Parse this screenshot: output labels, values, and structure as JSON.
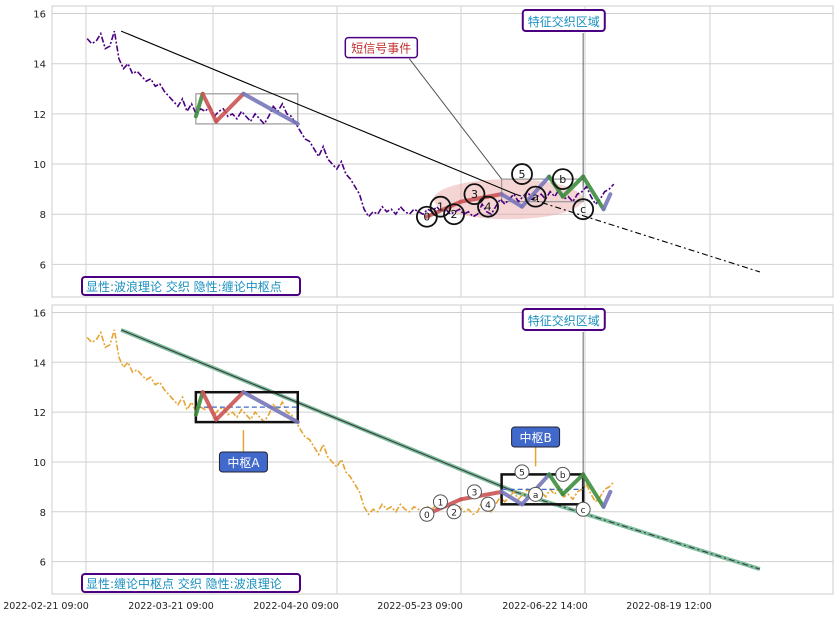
{
  "chart_data": [
    {
      "type": "line",
      "title": "",
      "ylim": [
        4.7,
        16.3
      ],
      "yticks": [
        6,
        8,
        10,
        12,
        14,
        16
      ],
      "grid": true,
      "x_ticks": [
        "2022-02-21 09:00",
        "2022-03-21 09:00",
        "2022-04-20 09:00",
        "2022-05-23 09:00",
        "2022-06-22 14:00",
        "2022-08-19 12:00"
      ],
      "legend_text": "显性:波浪理论 交织 隐性:缠论中枢点",
      "colors": {
        "price": "#4b0082",
        "trend": "#000000",
        "up": "#3f8f3f",
        "down": "#cc5555",
        "flat": "#7777bb",
        "event": "#e8a0a0",
        "callout_text": "#1a8fc0",
        "callout_border": "#4b0082",
        "signal_text": "#c03030"
      },
      "price": [
        15.0,
        14.8,
        14.9,
        15.2,
        14.6,
        14.7,
        15.3,
        14.2,
        13.8,
        14.0,
        13.6,
        13.7,
        13.5,
        13.3,
        13.4,
        13.1,
        13.2,
        12.9,
        12.7,
        12.5,
        12.3,
        12.6,
        12.1,
        12.4,
        12.0,
        12.2,
        12.1,
        12.3,
        11.9,
        12.1,
        12.2,
        11.9,
        12.0,
        11.8,
        12.1,
        11.9,
        11.7,
        12.0,
        11.8,
        11.6,
        11.9,
        12.3,
        12.1,
        12.4,
        12.0,
        11.9,
        11.6,
        11.3,
        11.0,
        10.9,
        10.6,
        10.3,
        10.7,
        10.2,
        10.0,
        9.8,
        10.1,
        9.6,
        9.4,
        9.1,
        8.8,
        8.2,
        7.9,
        8.1,
        8.0,
        8.3,
        8.1,
        8.2,
        8.0,
        8.3,
        8.1,
        8.0,
        8.2,
        8.1,
        8.0,
        8.2,
        8.1,
        8.3,
        8.1,
        8.2,
        8.0,
        8.1,
        8.2,
        8.0,
        8.1,
        7.9,
        8.0,
        8.4,
        8.1,
        8.0,
        8.3,
        8.6,
        8.4,
        8.6,
        8.8,
        8.5,
        8.7,
        8.9,
        8.6,
        8.7,
        8.8,
        8.6,
        8.9,
        8.7,
        9.0,
        8.6,
        8.7,
        8.5,
        8.8,
        8.9,
        9.1,
        8.7,
        8.4,
        8.6,
        8.9,
        9.0,
        9.2
      ],
      "trend_segments": [
        {
          "x": [
            0.05,
            0.63
          ],
          "y": [
            15.3,
            8.8
          ]
        },
        {
          "x": [
            0.63,
            0.99
          ],
          "y": [
            8.8,
            5.7
          ],
          "dashed": true
        }
      ],
      "waves": [
        {
          "x": [
            0.16,
            0.17
          ],
          "y": [
            11.9,
            12.8
          ],
          "dir": "up"
        },
        {
          "x": [
            0.17,
            0.19
          ],
          "y": [
            12.8,
            11.7
          ],
          "dir": "down"
        },
        {
          "x": [
            0.19,
            0.23
          ],
          "y": [
            11.7,
            12.8
          ],
          "dir": "down"
        },
        {
          "x": [
            0.23,
            0.31
          ],
          "y": [
            12.8,
            11.6
          ],
          "dir": "flat"
        },
        {
          "x": [
            0.5,
            0.55
          ],
          "y": [
            7.9,
            8.5
          ],
          "dir": "down"
        },
        {
          "x": [
            0.55,
            0.61
          ],
          "y": [
            8.5,
            8.8
          ],
          "dir": "down"
        },
        {
          "x": [
            0.61,
            0.64
          ],
          "y": [
            8.8,
            8.3
          ],
          "dir": "flat"
        },
        {
          "x": [
            0.64,
            0.68
          ],
          "y": [
            8.3,
            9.5
          ],
          "dir": "flat"
        },
        {
          "x": [
            0.68,
            0.7
          ],
          "y": [
            9.5,
            8.7
          ],
          "dir": "up"
        },
        {
          "x": [
            0.7,
            0.73
          ],
          "y": [
            8.7,
            9.5
          ],
          "dir": "up"
        },
        {
          "x": [
            0.73,
            0.76
          ],
          "y": [
            9.5,
            8.2
          ],
          "dir": "up"
        },
        {
          "x": [
            0.76,
            0.77
          ],
          "y": [
            8.2,
            8.8
          ],
          "dir": "flat"
        }
      ],
      "wave_labels": [
        {
          "text": "0",
          "x": 0.5,
          "y": 7.9
        },
        {
          "text": "1",
          "x": 0.52,
          "y": 8.3
        },
        {
          "text": "2",
          "x": 0.54,
          "y": 8.0
        },
        {
          "text": "3",
          "x": 0.57,
          "y": 8.8
        },
        {
          "text": "4",
          "x": 0.59,
          "y": 8.3
        },
        {
          "text": "5",
          "x": 0.64,
          "y": 9.6
        },
        {
          "text": "a",
          "x": 0.66,
          "y": 8.7
        },
        {
          "text": "b",
          "x": 0.7,
          "y": 9.4
        },
        {
          "text": "c",
          "x": 0.73,
          "y": 8.2
        }
      ],
      "pivot": {
        "x0": 0.16,
        "x1": 0.31,
        "y0": 11.6,
        "y1": 12.8
      },
      "pivot2": {
        "x0": 0.61,
        "x1": 0.73,
        "y0": 8.5,
        "y1": 9.4
      },
      "event_ellipse": {
        "cx": 0.62,
        "cy": 8.6,
        "rx": 0.11,
        "ry": 0.8
      },
      "signal_label": "短信号事件",
      "signal_text_pos": [
        0.43,
        14.6
      ],
      "signal_target": [
        0.61,
        9.4
      ],
      "region_label": "特征交织区域",
      "region_text_pos": [
        0.7,
        15.7
      ],
      "region_target": [
        0.73,
        9.1
      ]
    },
    {
      "type": "line",
      "title": "",
      "ylim": [
        4.7,
        16.3
      ],
      "yticks": [
        6,
        8,
        10,
        12,
        14,
        16
      ],
      "grid": true,
      "x_ticks": [
        "2022-02-21 09:00",
        "2022-03-21 09:00",
        "2022-04-20 09:00",
        "2022-05-23 09:00",
        "2022-06-22 14:00",
        "2022-08-19 12:00"
      ],
      "legend_text": "显性:缠论中枢点 交织 隐性:波浪理论",
      "colors": {
        "price": "#e6a532",
        "trend": "#3a3a3a",
        "trend_halo": "#7fbfa0",
        "up": "#3f8f3f",
        "down": "#cc5555",
        "flat": "#7777bb",
        "zhongshu_label_bg": "#4169cc",
        "zhongshu_label_text": "#ffffff",
        "callout_text": "#1a8fc0",
        "callout_border": "#4b0082"
      },
      "pivot_a": {
        "label": "中枢A",
        "x0": 0.16,
        "x1": 0.31,
        "y0": 11.6,
        "y1": 12.8,
        "label_x": 0.23,
        "label_y": 10.0
      },
      "pivot_b": {
        "label": "中枢B",
        "x0": 0.61,
        "x1": 0.73,
        "y0": 8.3,
        "y1": 9.5,
        "label_x": 0.66,
        "label_y": 11.0
      },
      "wave_labels": [
        {
          "text": "0",
          "x": 0.5,
          "y": 7.9
        },
        {
          "text": "1",
          "x": 0.52,
          "y": 8.4
        },
        {
          "text": "2",
          "x": 0.54,
          "y": 8.0
        },
        {
          "text": "3",
          "x": 0.57,
          "y": 8.8
        },
        {
          "text": "4",
          "x": 0.59,
          "y": 8.3
        },
        {
          "text": "5",
          "x": 0.64,
          "y": 9.6
        },
        {
          "text": "a",
          "x": 0.66,
          "y": 8.7
        },
        {
          "text": "b",
          "x": 0.7,
          "y": 9.5
        },
        {
          "text": "c",
          "x": 0.73,
          "y": 8.1
        }
      ],
      "region_label": "特征交织区域",
      "region_text_pos": [
        0.7,
        15.7
      ],
      "region_target": [
        0.73,
        9.0
      ]
    }
  ]
}
